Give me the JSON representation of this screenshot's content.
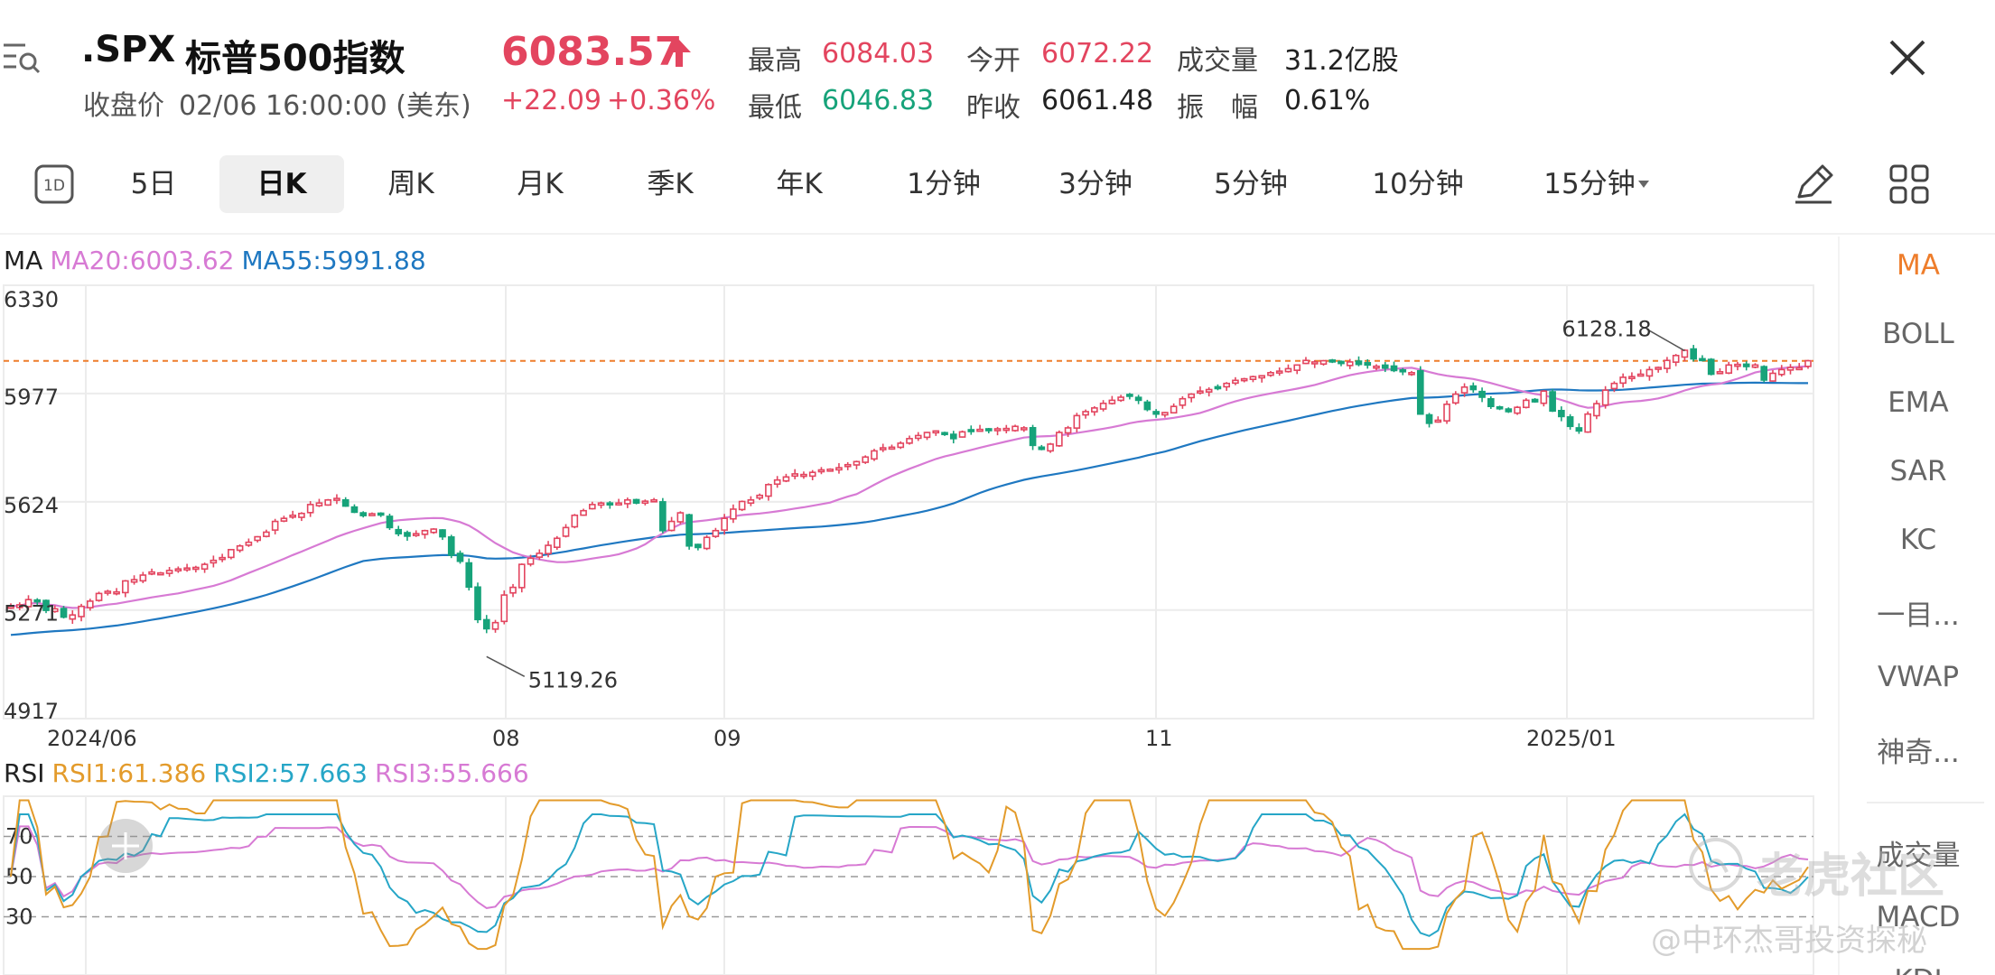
{
  "quote": {
    "symbol": ".SPX",
    "name": "标普500指数",
    "close_label": "收盘价",
    "close_time": "02/06 16:00:00 (美东)",
    "price": "6083.57",
    "change": "+22.09",
    "change_pct": "+0.36%",
    "stats": [
      {
        "label": "最高",
        "value": "6084.03",
        "tone": "red"
      },
      {
        "label": "今开",
        "value": "6072.22",
        "tone": "red"
      },
      {
        "label": "成交量",
        "value": "31.2亿股",
        "tone": "dark"
      },
      {
        "label": "最低",
        "value": "6046.83",
        "tone": "green"
      },
      {
        "label": "昨收",
        "value": "6061.48",
        "tone": "dark"
      },
      {
        "label": "振　幅",
        "value": "0.61%",
        "tone": "dark"
      }
    ]
  },
  "tabs": [
    {
      "label": "5日"
    },
    {
      "label": "日K"
    },
    {
      "label": "周K"
    },
    {
      "label": "月K"
    },
    {
      "label": "季K"
    },
    {
      "label": "年K"
    },
    {
      "label": "1分钟"
    },
    {
      "label": "3分钟"
    },
    {
      "label": "5分钟"
    },
    {
      "label": "10分钟"
    },
    {
      "label": "15分钟"
    }
  ],
  "tab_1d_label": "1D",
  "active_tab": "日K",
  "ma_header": {
    "name": "MA",
    "ma20": "MA20:6003.62",
    "ma55": "MA55:5991.88"
  },
  "rsi_header": {
    "name": "RSI",
    "rsi1": "RSI1:61.386",
    "rsi2": "RSI2:57.663",
    "rsi3": "RSI3:55.666"
  },
  "side_indicators": [
    "MA",
    "BOLL",
    "EMA",
    "SAR",
    "KC",
    "一目...",
    "VWAP",
    "神奇...",
    "成交量",
    "MACD",
    "KDJ"
  ],
  "watermark": {
    "main": "老虎社区",
    "sub": "@中环杰哥投资探秘"
  },
  "colors": {
    "up": "#e3455f",
    "down": "#17a37a",
    "ma20": "#d77ad4",
    "ma55": "#1f78c1",
    "rsi1": "#e39b2b",
    "rsi2": "#26a6c7",
    "rsi3": "#d77ad4",
    "ref_line": "#ee7d2b"
  },
  "chart_data": [
    {
      "type": "candlestick",
      "title": "",
      "y_tick_labels": [
        "6330",
        "5977",
        "5624",
        "5271",
        "4917"
      ],
      "ylim": [
        4917,
        6330
      ],
      "x_tick_labels": [
        "2024/06",
        "08",
        "09",
        "11",
        "2025/01"
      ],
      "annotations": [
        {
          "label": "6128.18",
          "kind": "high"
        },
        {
          "label": "5119.26",
          "kind": "low"
        }
      ],
      "reference_line": 6083.57,
      "closes": [
        5283,
        5288,
        5305,
        5300,
        5270,
        5275,
        5248,
        5255,
        5283,
        5300,
        5325,
        5332,
        5330,
        5366,
        5370,
        5385,
        5395,
        5392,
        5400,
        5405,
        5408,
        5410,
        5420,
        5433,
        5442,
        5468,
        5480,
        5492,
        5510,
        5525,
        5560,
        5570,
        5580,
        5586,
        5615,
        5620,
        5630,
        5635,
        5610,
        5590,
        5579,
        5585,
        5582,
        5540,
        5520,
        5512,
        5520,
        5530,
        5535,
        5510,
        5450,
        5430,
        5346,
        5240,
        5210,
        5230,
        5320,
        5345,
        5420,
        5440,
        5456,
        5482,
        5505,
        5540,
        5580,
        5595,
        5615,
        5620,
        5616,
        5620,
        5630,
        5620,
        5626,
        5630,
        5530,
        5560,
        5588,
        5480,
        5475,
        5508,
        5530,
        5570,
        5600,
        5625,
        5630,
        5645,
        5680,
        5695,
        5705,
        5715,
        5713,
        5720,
        5728,
        5730,
        5735,
        5745,
        5755,
        5770,
        5790,
        5800,
        5802,
        5815,
        5830,
        5840,
        5850,
        5855,
        5845,
        5830,
        5852,
        5855,
        5860,
        5858,
        5862,
        5863,
        5870,
        5865,
        5808,
        5795,
        5812,
        5850,
        5865,
        5905,
        5918,
        5930,
        5945,
        5955,
        5965,
        5970,
        5955,
        5925,
        5910,
        5915,
        5935,
        5960,
        5975,
        5985,
        5990,
        5995,
        6010,
        6020,
        6025,
        6032,
        6035,
        6045,
        6050,
        6058,
        6070,
        6085,
        6080,
        6084,
        6082,
        6075,
        6080,
        6072,
        6070,
        6066,
        6060,
        6052,
        6050,
        6045,
        5910,
        5880,
        5890,
        5942,
        5975,
        5998,
        5990,
        5965,
        5935,
        5930,
        5918,
        5932,
        5955,
        5950,
        5985,
        5920,
        5902,
        5870,
        5855,
        5910,
        5944,
        5988,
        6010,
        6030,
        6032,
        6040,
        6055,
        6062,
        6085,
        6101,
        6118,
        6090,
        6085,
        6040,
        6048,
        6070,
        6072,
        6065,
        6070,
        6021,
        6043,
        6055,
        6062,
        6061,
        6084
      ]
    },
    {
      "type": "line",
      "title": "",
      "y_tick_labels": [
        "70",
        "50",
        "30"
      ],
      "ylim": [
        10,
        90
      ],
      "series": [
        {
          "name": "RSI1"
        },
        {
          "name": "RSI2"
        },
        {
          "name": "RSI3"
        }
      ]
    }
  ]
}
